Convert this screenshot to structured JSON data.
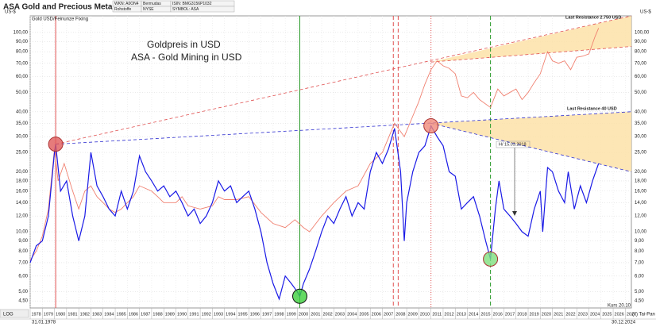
{
  "header": {
    "title": "ASA Gold and Precious Metals Ltd.",
    "info": [
      [
        "WKN: A0ON4",
        "Bermudas",
        "ISIN: BMG3156P1032"
      ],
      [
        "Rohstoffe",
        "NYSE",
        "SYMBOL: ASA"
      ]
    ]
  },
  "chart_data": {
    "type": "line",
    "ylog": true,
    "grid": true,
    "y_unit": "US-$",
    "scale_label": "LOG",
    "gold_label": "Gold USD/Feinunze Fixing",
    "date_start": "31.01.1978",
    "date_end": "30.12.2024",
    "price_label": "Kurs 20.10",
    "copyright": "(c) Tai-Pan",
    "xlim": [
      1978,
      2027.5
    ],
    "xticks": [
      1978,
      1979,
      1980,
      1981,
      1982,
      1983,
      1984,
      1985,
      1986,
      1987,
      1988,
      1989,
      1990,
      1991,
      1992,
      1993,
      1994,
      1995,
      1996,
      1997,
      1998,
      1999,
      2000,
      2001,
      2002,
      2003,
      2004,
      2005,
      2006,
      2007,
      2008,
      2009,
      2010,
      2011,
      2012,
      2013,
      2014,
      2015,
      2016,
      2017,
      2018,
      2019,
      2020,
      2021,
      2022,
      2023,
      2024,
      2025,
      2026,
      2027
    ],
    "ylim": [
      4.15,
      121
    ],
    "yticks": [
      {
        "value": 4.5,
        "label": "4,50"
      },
      {
        "value": 5,
        "label": "5,00"
      },
      {
        "value": 6,
        "label": "6,00"
      },
      {
        "value": 7,
        "label": "7,00"
      },
      {
        "value": 8,
        "label": "8,00"
      },
      {
        "value": 9,
        "label": "9,00"
      },
      {
        "value": 10,
        "label": "10,00"
      },
      {
        "value": 12,
        "label": "12,00"
      },
      {
        "value": 14,
        "label": "14,00"
      },
      {
        "value": 16,
        "label": "16,00"
      },
      {
        "value": 18,
        "label": "18,00"
      },
      {
        "value": 20,
        "label": "20,00"
      },
      {
        "value": 25,
        "label": "25,00"
      },
      {
        "value": 30,
        "label": "30,00"
      },
      {
        "value": 35,
        "label": "35,00"
      },
      {
        "value": 40,
        "label": "40,00"
      },
      {
        "value": 50,
        "label": "50,00"
      },
      {
        "value": 60,
        "label": "60,00"
      },
      {
        "value": 70,
        "label": "70,00"
      },
      {
        "value": 80,
        "label": "80,00"
      },
      {
        "value": 90,
        "label": "90,00"
      },
      {
        "value": 100,
        "label": "100,00"
      }
    ],
    "zones": [
      {
        "x": [
          2011,
          2027.5,
          2027.5
        ],
        "y": [
          71,
          121,
          85
        ],
        "color": "#fde2a8"
      },
      {
        "x": [
          2011,
          2027.5,
          2027.5
        ],
        "y": [
          35,
          40,
          20
        ],
        "color": "#fde2a8"
      }
    ],
    "trendlines": [
      {
        "x": [
          1980.1,
          2027.5
        ],
        "y": [
          27.5,
          121
        ],
        "color": "#e05050"
      },
      {
        "x": [
          1980.1,
          2027.5
        ],
        "y": [
          27.5,
          40
        ],
        "color": "#3030d0"
      },
      {
        "x": [
          2011,
          2027.5
        ],
        "y": [
          71,
          85
        ],
        "color": "#e05050"
      },
      {
        "x": [
          2011,
          2027.5
        ],
        "y": [
          35,
          20
        ],
        "color": "#3030d0"
      }
    ],
    "vlines": [
      {
        "x": 1980.1,
        "color": "#e05050",
        "dash": "solid"
      },
      {
        "x": 2000.2,
        "color": "#2a9a2a",
        "dash": "solid"
      },
      {
        "x": 2007.9,
        "color": "#e05050",
        "dash": "dashed"
      },
      {
        "x": 2008.3,
        "color": "#e05050",
        "dash": "dashed"
      },
      {
        "x": 2011,
        "color": "#e05050",
        "dash": "dotted"
      },
      {
        "x": 2015.9,
        "color": "#2a9a2a",
        "dash": "dashed"
      }
    ],
    "series": [
      {
        "name": "Goldpreis in USD",
        "color": "#f08070",
        "x": [
          1978,
          1978.5,
          1979,
          1979.5,
          1980,
          1980.3,
          1980.8,
          1981.5,
          1982,
          1982.5,
          1983,
          1983.5,
          1984,
          1984.5,
          1985,
          1985.5,
          1986,
          1986.5,
          1987,
          1988,
          1988.5,
          1989,
          1990,
          1990.5,
          1991,
          1992,
          1993,
          1993.5,
          1994,
          1995,
          1996,
          1997,
          1998,
          1999,
          1999.8,
          2000.5,
          2001,
          2002,
          2003,
          2004,
          2005,
          2006,
          2007,
          2008,
          2008.8,
          2009.5,
          2010,
          2010.5,
          2011,
          2011.5,
          2012,
          2012.5,
          2013,
          2013.5,
          2014,
          2014.5,
          2015,
          2015.9,
          2016.5,
          2017,
          2017.5,
          2018,
          2018.5,
          2019,
          2019.5,
          2020,
          2020.6,
          2021,
          2021.5,
          2022,
          2022.5,
          2023,
          2023.5,
          2024,
          2024.5,
          2024.8
        ],
        "values": [
          7.2,
          8,
          9.5,
          13,
          26,
          18,
          22,
          16,
          13,
          16,
          17,
          15,
          14,
          13,
          12.5,
          13,
          14,
          15,
          17,
          16,
          15,
          14,
          14,
          15,
          13.5,
          13,
          13.5,
          15,
          14.5,
          14.5,
          15,
          12.5,
          11,
          10.5,
          11.5,
          10.5,
          10,
          12,
          14,
          16,
          17,
          22,
          25,
          35,
          30,
          38,
          45,
          55,
          65,
          72,
          68,
          66,
          62,
          48,
          47,
          50,
          46,
          42,
          52,
          48,
          50,
          52,
          46,
          50,
          56,
          62,
          80,
          72,
          70,
          72,
          65,
          75,
          76,
          78,
          95,
          105
        ]
      },
      {
        "name": "ASA - Gold Mining in USD",
        "color": "#1a1ae6",
        "x": [
          1978,
          1978.5,
          1979,
          1979.5,
          1980,
          1980.1,
          1980.5,
          1981,
          1981.5,
          1982,
          1982.5,
          1983,
          1983.5,
          1984,
          1984.5,
          1985,
          1985.5,
          1986,
          1986.5,
          1987,
          1987.5,
          1988,
          1988.5,
          1989,
          1989.5,
          1990,
          1990.5,
          1991,
          1991.5,
          1992,
          1992.5,
          1993,
          1993.5,
          1994,
          1994.5,
          1995,
          1995.5,
          1996,
          1996.5,
          1997,
          1997.5,
          1998,
          1998.5,
          1999,
          1999.5,
          2000,
          2000.2,
          2000.5,
          2001,
          2001.5,
          2002,
          2002.5,
          2003,
          2003.5,
          2004,
          2004.5,
          2005,
          2005.5,
          2006,
          2006.5,
          2007,
          2007.5,
          2008,
          2008.5,
          2008.8,
          2009,
          2009.5,
          2010,
          2010.5,
          2011,
          2011.5,
          2012,
          2012.5,
          2013,
          2013.5,
          2014,
          2014.5,
          2015,
          2015.5,
          2015.9,
          2016.3,
          2016.6,
          2017,
          2017.5,
          2018,
          2018.5,
          2019,
          2019.5,
          2020,
          2020.2,
          2020.6,
          2021,
          2021.5,
          2022,
          2022.3,
          2022.8,
          2023.3,
          2023.8,
          2024.3,
          2024.8
        ],
        "values": [
          7,
          8.5,
          9,
          12,
          25,
          27.5,
          16,
          18,
          12,
          9,
          12,
          25,
          17,
          15,
          13,
          12,
          16,
          13,
          16,
          24,
          20,
          18,
          16,
          17,
          15,
          16,
          14,
          12,
          13,
          11,
          12,
          14,
          18,
          16,
          17,
          14,
          15,
          16,
          13,
          10,
          7,
          5.5,
          4.6,
          6,
          5.5,
          5,
          4.75,
          5.5,
          6.5,
          8,
          10,
          12,
          11,
          13,
          15,
          12,
          14,
          13,
          20,
          25,
          22,
          26,
          33,
          20,
          9,
          14,
          20,
          25,
          27,
          34,
          30,
          27,
          20,
          19,
          13,
          14,
          15,
          12,
          9,
          7.3,
          13,
          18,
          13,
          12,
          11,
          10,
          9.5,
          13,
          16,
          10,
          21,
          20,
          16,
          14,
          20,
          13,
          17,
          14,
          18,
          22
        ]
      }
    ],
    "circles": [
      {
        "x": 1980.1,
        "y": 27.5,
        "color": "#e05a5a"
      },
      {
        "x": 2000.2,
        "y": 4.75,
        "color": "#3ccf3c"
      },
      {
        "x": 2011,
        "y": 34,
        "color": "#f08a7a"
      },
      {
        "x": 2015.9,
        "y": 7.3,
        "color": "#7ee07e"
      }
    ],
    "annotations": [
      {
        "text": "Last Resistance 2.750 USD",
        "color": "#e03030"
      },
      {
        "text": "Last Resistance 40 USD",
        "color": "#2020c0"
      },
      {
        "text": "H/ 15.03.2018",
        "color": "#333333"
      }
    ]
  }
}
